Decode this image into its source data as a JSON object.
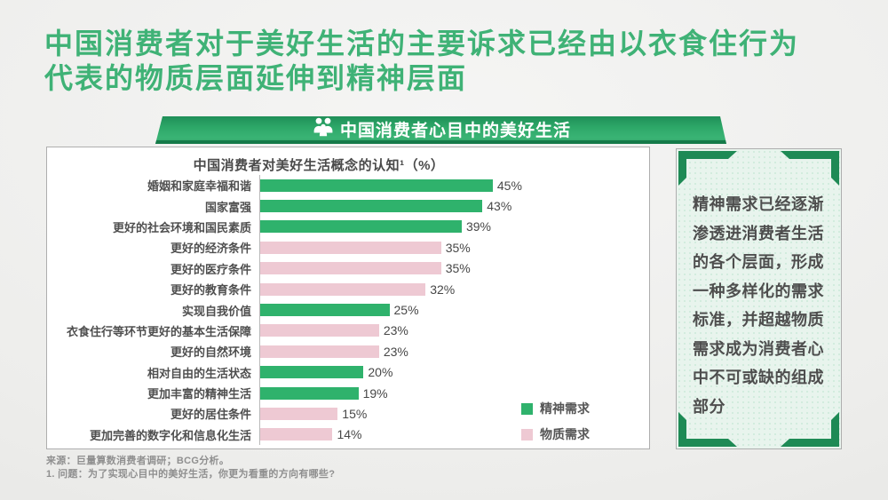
{
  "page": {
    "title_line1": "中国消费者对于美好生活的主要诉求已经由以衣食住行为",
    "title_line2": "代表的物质层面延伸到精神层面",
    "title_color": "#3fb276"
  },
  "banner": {
    "label": "中国消费者心目中的美好生活",
    "icon": "family-icon",
    "gradient_top": "#1f8f58",
    "gradient_bottom": "#3ab475"
  },
  "chart_data": {
    "type": "bar",
    "orientation": "horizontal",
    "title": "中国消费者对美好生活概念的认知¹（%）",
    "categories": [
      "婚姻和家庭幸福和谐",
      "国家富强",
      "更好的社会环境和国民素质",
      "更好的经济条件",
      "更好的医疗条件",
      "更好的教育条件",
      "实现自我价值",
      "衣食住行等环节更好的基本生活保障",
      "更好的自然环境",
      "相对自由的生活状态",
      "更加丰富的精神生活",
      "更好的居住条件",
      "更加完善的数字化和信息化生活"
    ],
    "values": [
      45,
      43,
      39,
      35,
      35,
      32,
      25,
      23,
      23,
      20,
      19,
      15,
      14
    ],
    "series_of_row": [
      "spiritual",
      "spiritual",
      "spiritual",
      "material",
      "material",
      "material",
      "spiritual",
      "material",
      "material",
      "spiritual",
      "spiritual",
      "material",
      "material"
    ],
    "series_names": {
      "spiritual": "精神需求",
      "material": "物质需求"
    },
    "colors": {
      "spiritual": "#2fb26c",
      "material": "#eec9d3"
    },
    "xlim": [
      0,
      50
    ],
    "value_suffix": "%",
    "grid": false,
    "legend_position": "bottom-right"
  },
  "sidebar": {
    "text": "精神需求已经逐渐渗透进消费者生活的各个层面，形成一种多样化的需求标准，并超越物质需求成为消费者心中不可或缺的组成部分",
    "bracket_color": "#1e8a55",
    "background": "#e8f4ed"
  },
  "footnotes": {
    "source": "来源：巨量算数消费者调研；BCG分析。",
    "note": "1. 问题：为了实现心目中的美好生活，你更为看重的方向有哪些?"
  }
}
